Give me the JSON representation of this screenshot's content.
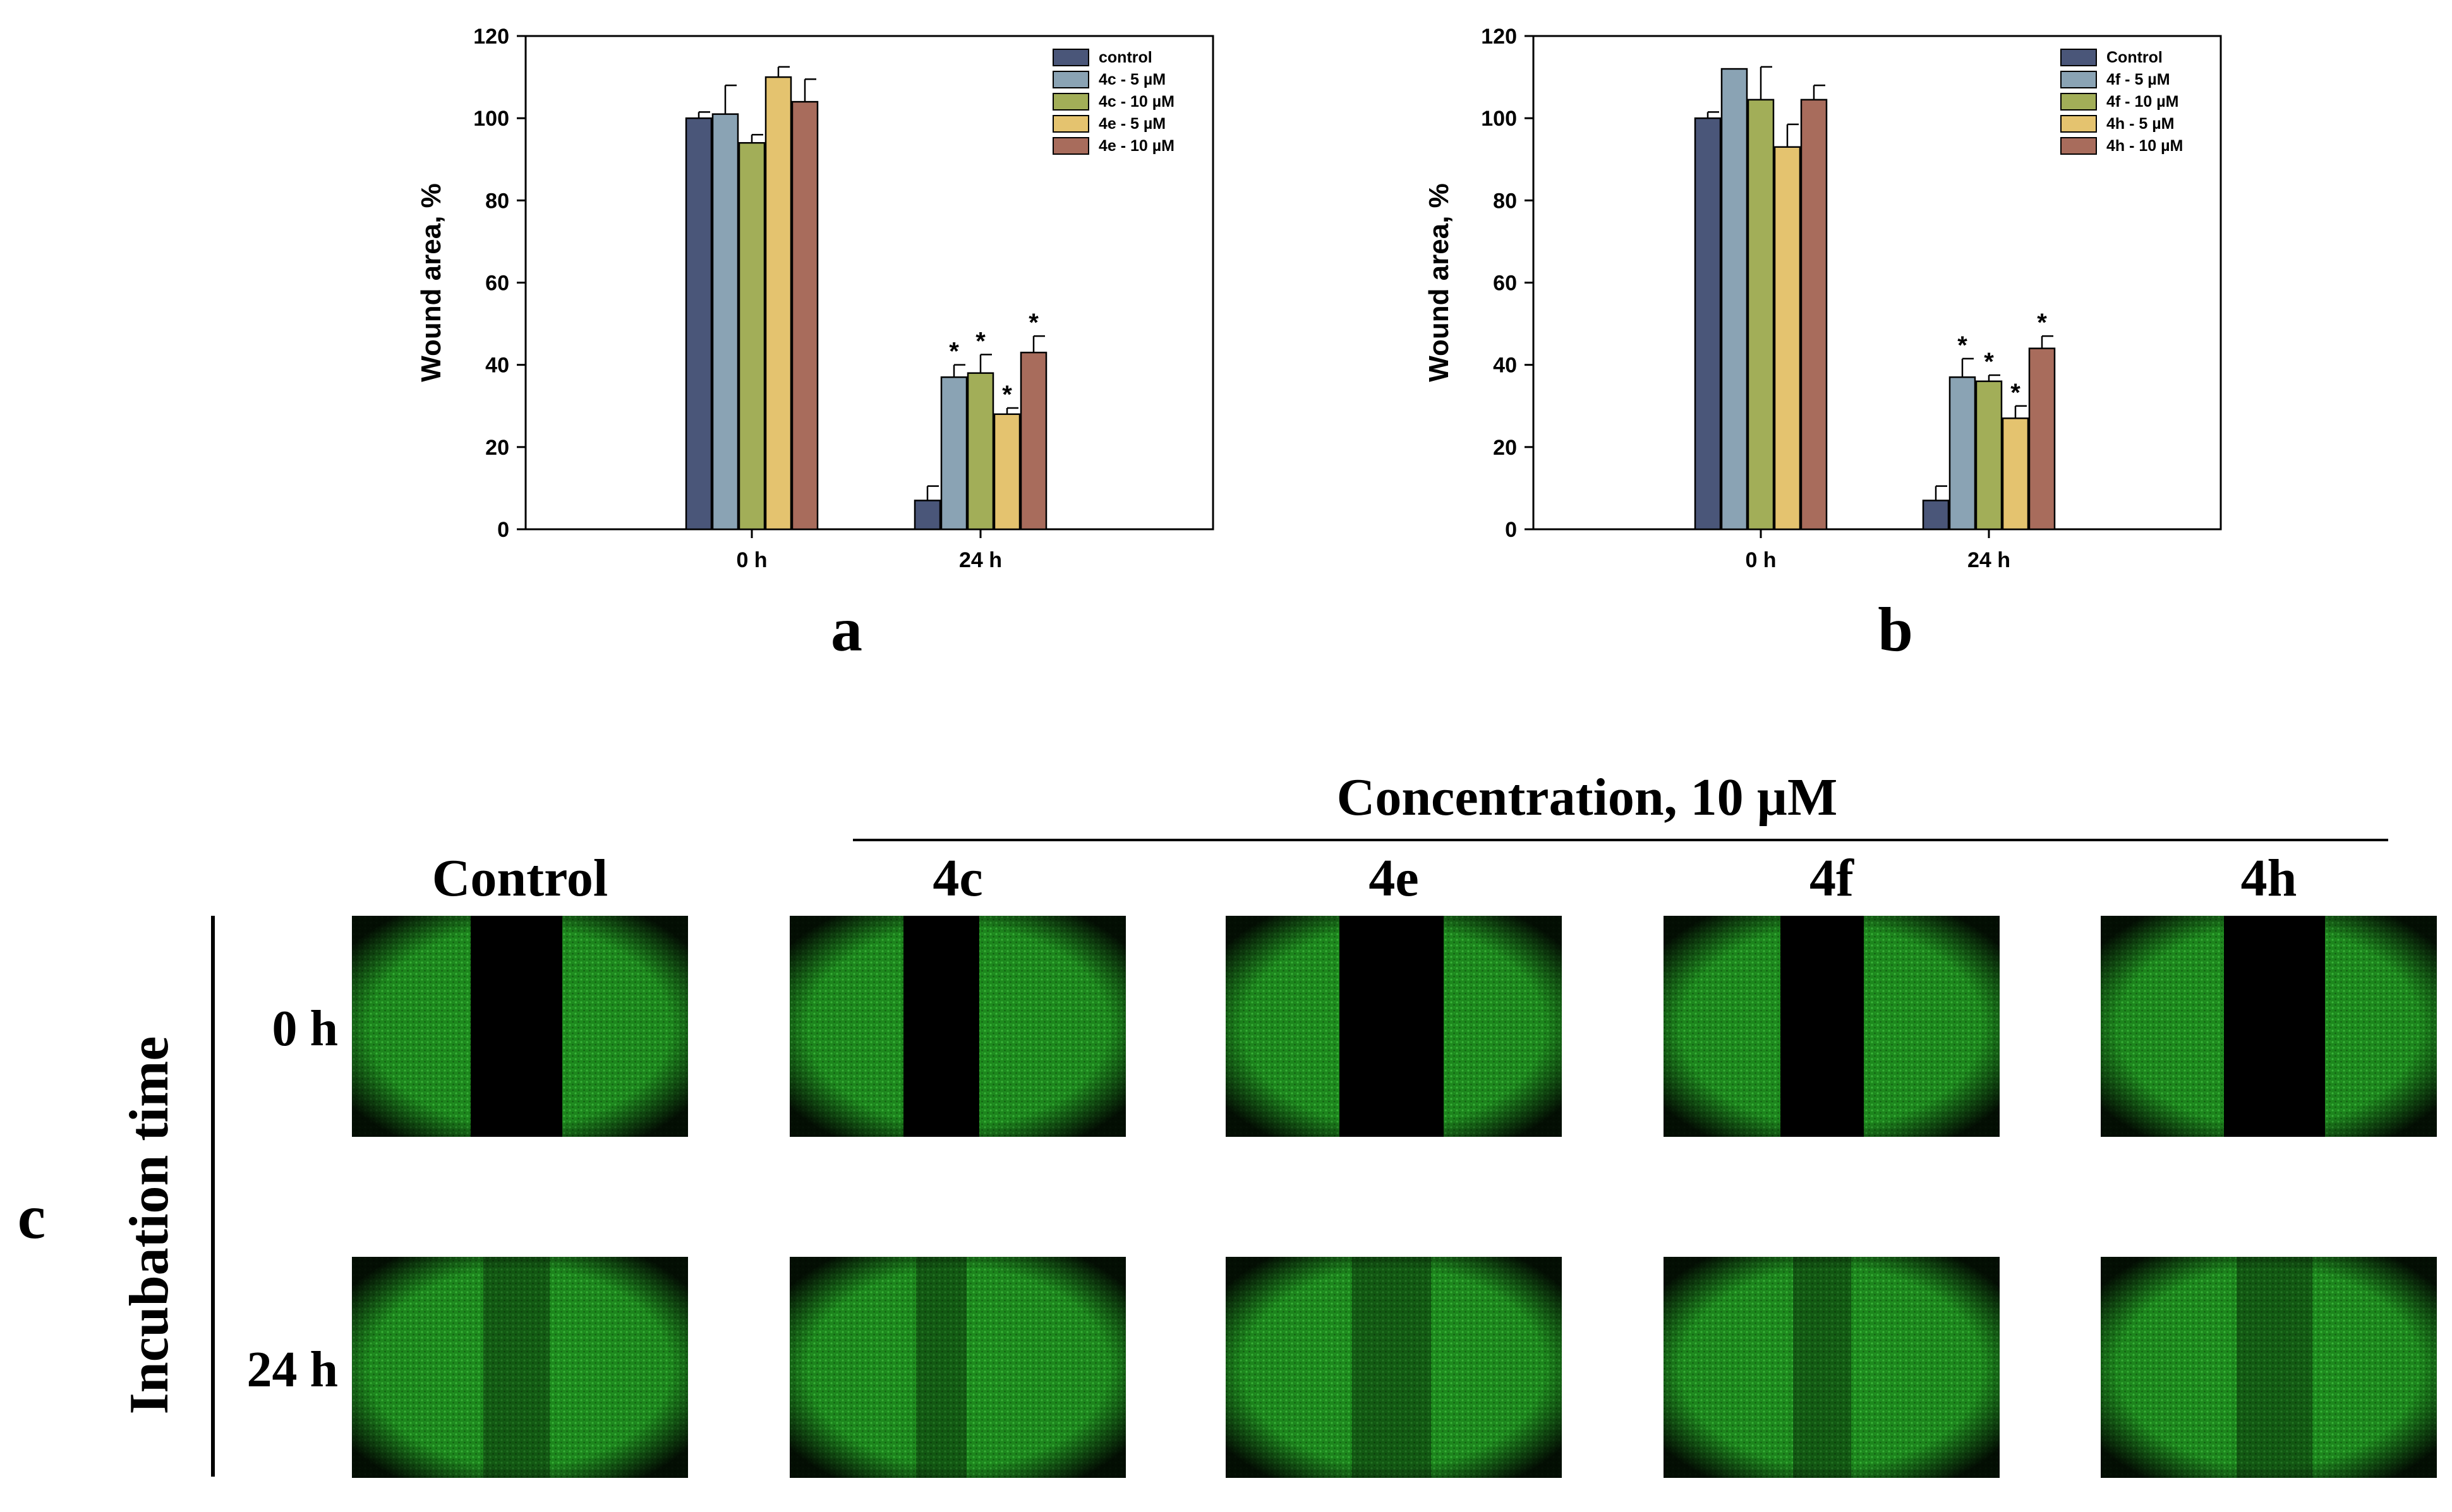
{
  "chart_data": [
    {
      "panel": "a",
      "type": "bar",
      "ylabel": "Wound area, %",
      "ylim": [
        0,
        120
      ],
      "yticks": [
        0,
        20,
        40,
        60,
        80,
        100,
        120
      ],
      "categories": [
        "0 h",
        "24 h"
      ],
      "series": [
        {
          "name": "control",
          "color": "#4a5679",
          "values": [
            100,
            7
          ],
          "errors": [
            1.5,
            3.5
          ],
          "sig": [
            "",
            ""
          ]
        },
        {
          "name": "4c - 5 µM",
          "color": "#8aa3b4",
          "values": [
            101,
            37
          ],
          "errors": [
            7,
            3
          ],
          "sig": [
            "",
            "*"
          ]
        },
        {
          "name": "4c - 10 µM",
          "color": "#a2ae58",
          "values": [
            94,
            38
          ],
          "errors": [
            2,
            4.5
          ],
          "sig": [
            "",
            "*"
          ]
        },
        {
          "name": "4e - 5 µM",
          "color": "#e4c36f",
          "values": [
            110,
            28
          ],
          "errors": [
            2.5,
            1.5
          ],
          "sig": [
            "",
            "*"
          ]
        },
        {
          "name": "4e - 10 µM",
          "color": "#a86c5c",
          "values": [
            104,
            43
          ],
          "errors": [
            5.5,
            4
          ],
          "sig": [
            "",
            "*"
          ]
        }
      ]
    },
    {
      "panel": "b",
      "type": "bar",
      "ylabel": "Wound area, %",
      "ylim": [
        0,
        120
      ],
      "yticks": [
        0,
        20,
        40,
        60,
        80,
        100,
        120
      ],
      "categories": [
        "0 h",
        "24 h"
      ],
      "series": [
        {
          "name": "Control",
          "color": "#4a5679",
          "values": [
            100,
            7
          ],
          "errors": [
            1.5,
            3.5
          ],
          "sig": [
            "",
            ""
          ]
        },
        {
          "name": "4f - 5 µM",
          "color": "#8aa3b4",
          "values": [
            112,
            37
          ],
          "errors": [
            0,
            4.5
          ],
          "sig": [
            "",
            "*"
          ]
        },
        {
          "name": "4f - 10 µM",
          "color": "#a2ae58",
          "values": [
            104.5,
            36
          ],
          "errors": [
            8,
            1.5
          ],
          "sig": [
            "",
            "*"
          ]
        },
        {
          "name": "4h - 5 µM",
          "color": "#e4c36f",
          "values": [
            93,
            27
          ],
          "errors": [
            5.5,
            3
          ],
          "sig": [
            "",
            "*"
          ]
        },
        {
          "name": "4h - 10 µM",
          "color": "#a86c5c",
          "values": [
            104.5,
            44
          ],
          "errors": [
            3.5,
            3
          ],
          "sig": [
            "",
            "*"
          ]
        }
      ]
    }
  ],
  "panel_labels": {
    "a": "a",
    "b": "b",
    "c": "c"
  },
  "micrographs": {
    "header": "Concentration, 10 µM",
    "row_axis_label": "Incubation time",
    "columns": [
      "Control",
      "4c",
      "4e",
      "4f",
      "4h"
    ],
    "rows": [
      "0 h",
      "24 h"
    ]
  }
}
